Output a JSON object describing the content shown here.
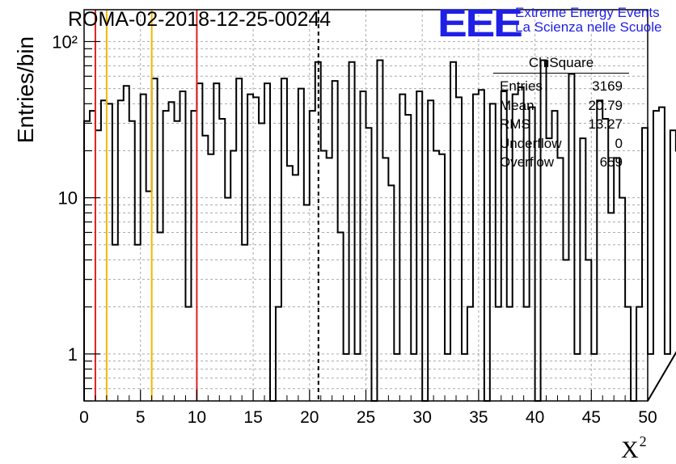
{
  "header": {
    "title": "ROMA-02-2018-12-25-00244",
    "logo_text": "EEE",
    "logo_line1": "Extreme Energy Events",
    "logo_line2": "La Scienza nelle Scuole",
    "brand_color": "#1f1fe6"
  },
  "stats_box": {
    "title": "ChiSquare",
    "rows": [
      {
        "label": "Entries",
        "value": "3169"
      },
      {
        "label": "Mean",
        "value": "20.79"
      },
      {
        "label": "RMS",
        "value": "13.27"
      },
      {
        "label": "Underflow",
        "value": "0"
      },
      {
        "label": "Overflow",
        "value": "659"
      }
    ]
  },
  "chart_data": {
    "type": "bar",
    "style": "step-histogram",
    "xlabel": "X",
    "xlabel_superscript": "2",
    "ylabel": "Entries/bin",
    "xlim": [
      0,
      50
    ],
    "ylim": [
      0.5,
      160
    ],
    "yscale": "log",
    "grid": true,
    "bin_width": 0.5,
    "x_ticks": [
      0,
      5,
      10,
      15,
      20,
      25,
      30,
      35,
      40,
      45,
      50
    ],
    "y_ticks": [
      {
        "value": 1,
        "label": "1"
      },
      {
        "value": 10,
        "label": "10"
      },
      {
        "value": 100,
        "label": "10²"
      }
    ],
    "values": [
      31,
      36,
      27,
      42,
      40,
      5,
      42,
      52,
      31,
      5,
      46,
      11,
      58,
      6,
      36,
      41,
      31,
      48,
      2,
      36,
      54,
      25,
      19,
      54,
      32,
      10,
      20,
      58,
      5,
      46,
      44,
      30,
      54,
      0,
      2,
      58,
      16,
      14,
      50,
      9,
      36,
      74,
      20,
      18,
      56,
      6,
      1,
      74,
      1,
      48,
      28,
      0,
      76,
      18,
      12,
      1,
      46,
      34,
      1,
      48,
      0,
      42,
      20,
      19,
      1,
      74,
      44,
      1,
      2,
      46,
      49,
      0,
      40,
      2,
      48,
      2,
      46,
      51,
      2,
      38,
      0,
      76,
      24,
      36,
      18,
      4,
      62,
      1,
      24,
      4,
      1,
      42,
      32,
      8,
      18,
      10,
      2,
      0,
      2,
      28,
      1,
      36,
      38,
      1,
      27,
      20,
      24,
      14,
      1,
      56,
      28,
      1,
      28,
      34,
      56,
      1,
      1,
      34,
      0,
      1,
      10,
      2,
      0,
      15
    ],
    "markers": [
      {
        "x": 1,
        "color": "#e02020",
        "style": "solid"
      },
      {
        "x": 2,
        "color": "#f0b800",
        "style": "solid"
      },
      {
        "x": 6,
        "color": "#f0b800",
        "style": "solid"
      },
      {
        "x": 10,
        "color": "#e02020",
        "style": "solid"
      },
      {
        "x": 20.79,
        "color": "#000000",
        "style": "dashed"
      }
    ]
  }
}
